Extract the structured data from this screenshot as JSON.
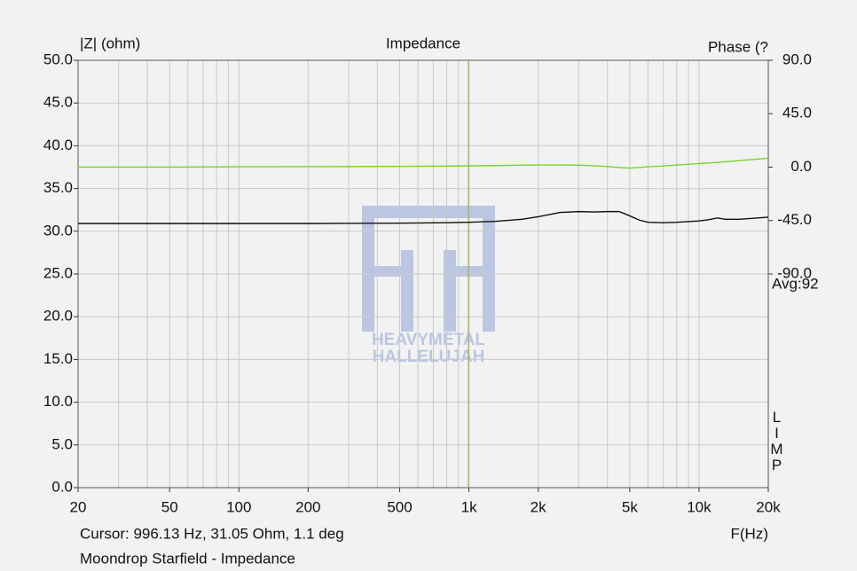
{
  "chart_data": {
    "type": "line",
    "title": "Impedance",
    "y_label": "|Z| (ohm)",
    "y2_label": "Phase (?",
    "x_label": "F(Hz)",
    "average_label": "Avg:92",
    "side_label": "LIMP",
    "cursor": {
      "x": 996.13,
      "label": "Cursor: 996.13 Hz, 31.05 Ohm, 1.1 deg",
      "color": "#a8a84a"
    },
    "caption": "Moondrop Starfield - Impedance",
    "watermark": [
      "HEAVYMETAL",
      "HALLELUJAH"
    ],
    "x_scale": "log",
    "grid": true,
    "xlim": [
      20,
      20000
    ],
    "xticks": [
      20,
      50,
      100,
      200,
      500,
      {
        "value": 1000,
        "label": "1k"
      },
      {
        "value": 2000,
        "label": "2k"
      },
      {
        "value": 5000,
        "label": "5k"
      },
      {
        "value": 10000,
        "label": "10k"
      },
      {
        "value": 20000,
        "label": "20k"
      }
    ],
    "x_minor_ticks": [
      30,
      40,
      60,
      70,
      80,
      90,
      300,
      400,
      600,
      700,
      800,
      900,
      3000,
      4000,
      6000,
      7000,
      8000,
      9000
    ],
    "ylim": [
      0,
      50
    ],
    "yticks": [
      {
        "value": 0,
        "label": "0.0"
      },
      {
        "value": 5,
        "label": "5.0"
      },
      {
        "value": 10,
        "label": "10.0"
      },
      {
        "value": 15,
        "label": "15.0"
      },
      {
        "value": 20,
        "label": "20.0"
      },
      {
        "value": 25,
        "label": "25.0"
      },
      {
        "value": 30,
        "label": "30.0"
      },
      {
        "value": 35,
        "label": "35.0"
      },
      {
        "value": 40,
        "label": "40.0"
      },
      {
        "value": 45,
        "label": "45.0"
      },
      {
        "value": 50,
        "label": "50.0"
      }
    ],
    "y2lim": [
      -270,
      90
    ],
    "y2ticks": [
      {
        "value": 90,
        "label": "90.0"
      },
      {
        "value": 45,
        "label": "45.0"
      },
      {
        "value": 0,
        "label": "0.0"
      },
      {
        "value": -45,
        "label": "-45.0"
      },
      {
        "value": -90,
        "label": "-90.0"
      }
    ],
    "x": [
      20,
      50,
      100,
      200,
      500,
      800,
      1000,
      1300,
      1700,
      2000,
      2500,
      3000,
      3500,
      4000,
      4500,
      5000,
      5500,
      6000,
      7000,
      8000,
      10000,
      11000,
      12000,
      13000,
      15000,
      20000
    ],
    "series": [
      {
        "name": "Impedance",
        "color": "#111111",
        "values": [
          30.9,
          30.9,
          30.9,
          30.9,
          30.95,
          31.0,
          31.05,
          31.15,
          31.4,
          31.7,
          32.2,
          32.3,
          32.25,
          32.3,
          32.3,
          31.8,
          31.3,
          31.05,
          31.0,
          31.05,
          31.2,
          31.35,
          31.55,
          31.4,
          31.4,
          31.65
        ]
      },
      {
        "name": "Phase",
        "color": "#77d42a",
        "axis": "y2",
        "values": [
          0,
          0,
          0.3,
          0.4,
          0.6,
          0.9,
          1.1,
          1.3,
          1.6,
          1.8,
          1.8,
          1.6,
          1.2,
          0.5,
          -0.3,
          -0.8,
          -0.3,
          0.3,
          1,
          1.8,
          3,
          3.5,
          4,
          4.5,
          5.5,
          7.5
        ]
      }
    ]
  }
}
